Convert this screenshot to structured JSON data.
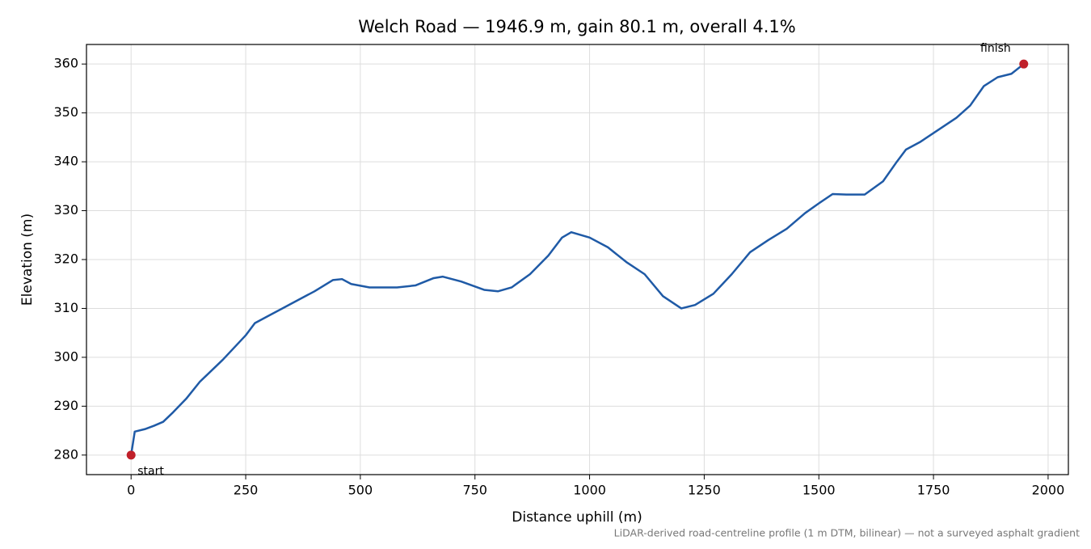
{
  "chart_data": {
    "type": "line",
    "title": "Welch Road — 1946.9 m, gain 80.1 m, overall 4.1%",
    "xlabel": "Distance uphill (m)",
    "ylabel": "Elevation (m)",
    "x": [
      0,
      8,
      30,
      50,
      70,
      90,
      120,
      150,
      200,
      230,
      250,
      270,
      300,
      350,
      400,
      440,
      460,
      480,
      520,
      580,
      620,
      660,
      680,
      720,
      770,
      800,
      830,
      870,
      910,
      940,
      960,
      1000,
      1040,
      1080,
      1120,
      1160,
      1200,
      1230,
      1270,
      1310,
      1350,
      1390,
      1430,
      1470,
      1500,
      1530,
      1560,
      1600,
      1640,
      1670,
      1690,
      1720,
      1760,
      1800,
      1830,
      1860,
      1890,
      1920,
      1946.9
    ],
    "series": [
      {
        "name": "Elevation",
        "color": "#1f5aa6",
        "values": [
          280,
          284.8,
          285.3,
          286,
          286.8,
          288.6,
          291.5,
          295,
          299.5,
          302.5,
          304.5,
          307,
          308.5,
          311,
          313.5,
          315.8,
          316,
          315,
          314.3,
          314.3,
          314.7,
          316.2,
          316.5,
          315.5,
          313.8,
          313.5,
          314.3,
          317,
          320.8,
          324.5,
          325.6,
          324.5,
          322.5,
          319.5,
          317,
          312.5,
          310,
          310.7,
          313,
          317,
          321.5,
          324,
          326.3,
          329.5,
          331.5,
          333.4,
          333.3,
          333.3,
          336,
          340,
          342.5,
          344,
          346.5,
          349,
          351.5,
          355.5,
          357.3,
          358,
          360
        ]
      }
    ],
    "endpoint_color": "#c0202a",
    "annotations": [
      "start",
      "finish"
    ],
    "footnote": "LiDAR-derived road-centreline profile (1 m DTM, bilinear) — not a surveyed asphalt gradient",
    "xlim": [
      -97.3,
      2044.2
    ],
    "ylim": [
      276,
      364
    ],
    "xticks": [
      0,
      250,
      500,
      750,
      1000,
      1250,
      1500,
      1750,
      2000
    ],
    "yticks": [
      280,
      290,
      300,
      310,
      320,
      330,
      340,
      350,
      360
    ],
    "grid": true
  }
}
